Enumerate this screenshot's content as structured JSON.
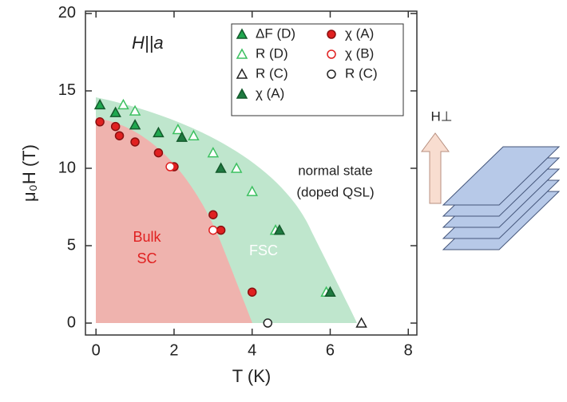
{
  "chart_data": {
    "type": "scatter",
    "x_label": "T (K)",
    "y_label": "μ₀H (T)",
    "xlim": [
      -0.27,
      8.22
    ],
    "ylim": [
      -0.77,
      20.15
    ],
    "xticks": [
      0,
      2,
      4,
      6,
      8
    ],
    "yticks": [
      0,
      5,
      10,
      15,
      20
    ],
    "series": [
      {
        "name": "ΔF (D)",
        "color": "#1fa84f",
        "marker": "triangle",
        "filled": true,
        "x": [
          0.1,
          0.5,
          1.0,
          1.6
        ],
        "values": [
          14.1,
          13.6,
          12.8,
          12.3
        ]
      },
      {
        "name": "R (D)",
        "color": "#3cc060",
        "marker": "triangle",
        "filled": false,
        "x": [
          0.7,
          1.0,
          2.1,
          2.5,
          3.0,
          3.6,
          4.0,
          4.6,
          5.9
        ],
        "values": [
          14.1,
          13.7,
          12.5,
          12.1,
          11.0,
          10.0,
          8.5,
          6.0,
          2.0
        ]
      },
      {
        "name": "R (C)",
        "color": "#222222",
        "marker": "triangle",
        "filled": false,
        "x": [
          6.8
        ],
        "values": [
          0
        ]
      },
      {
        "name": "χ (A)",
        "color": "#1e7a40",
        "marker": "triangle",
        "filled": true,
        "x": [
          2.2,
          3.2,
          4.7,
          6.0
        ],
        "values": [
          12.0,
          10.0,
          6.0,
          2.0
        ]
      },
      {
        "name": "χ (A)",
        "color": "#e02020",
        "marker": "circle",
        "filled": true,
        "x": [
          0.1,
          0.5,
          0.6,
          1.0,
          1.6,
          2.0,
          3.0,
          3.2,
          4.0
        ],
        "values": [
          13.0,
          12.7,
          12.1,
          11.7,
          11.0,
          10.1,
          7.0,
          6.0,
          2.0
        ]
      },
      {
        "name": "χ (B)",
        "color": "#e02020",
        "marker": "circle",
        "filled": false,
        "x": [
          1.9,
          3.0
        ],
        "values": [
          10.1,
          6.0
        ]
      },
      {
        "name": "R (C)",
        "color": "#222222",
        "marker": "circle",
        "filled": false,
        "x": [
          4.4
        ],
        "values": [
          0
        ]
      }
    ],
    "annotations": [
      "H||a",
      "normal state",
      "(doped QSL)",
      "Bulk",
      "SC",
      "FSC",
      "H⊥"
    ]
  }
}
